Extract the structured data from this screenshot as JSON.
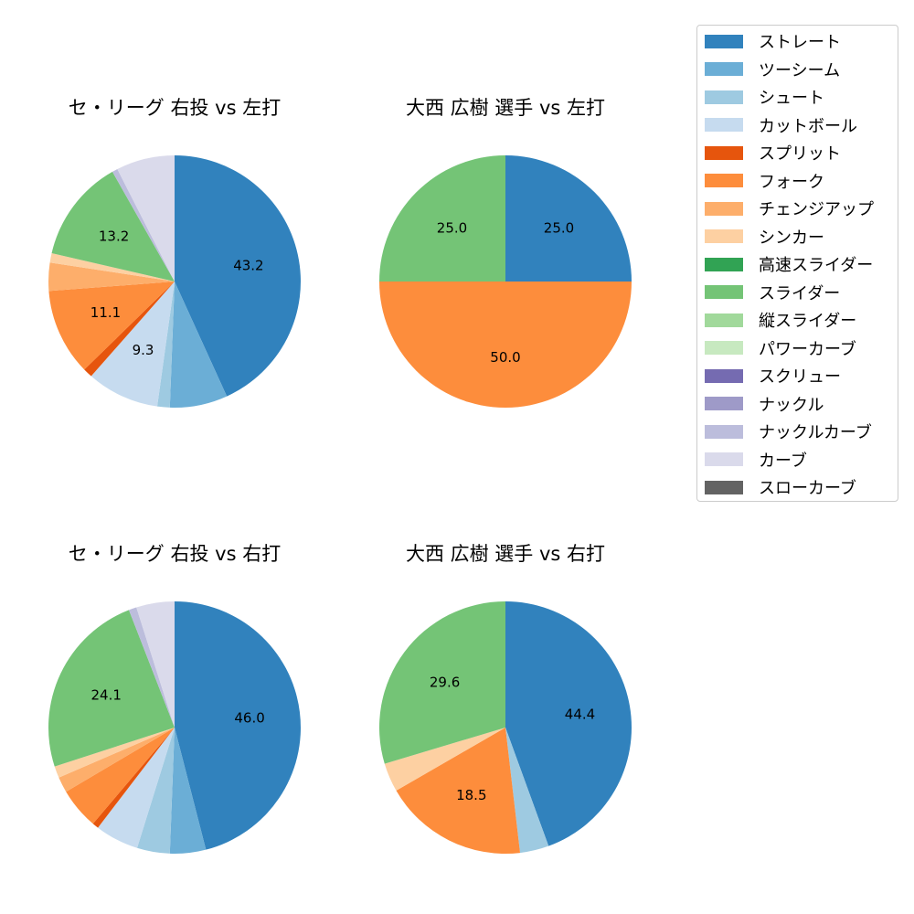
{
  "legend": [
    {
      "label": "ストレート",
      "color": "#3182bd"
    },
    {
      "label": "ツーシーム",
      "color": "#6baed6"
    },
    {
      "label": "シュート",
      "color": "#9ecae1"
    },
    {
      "label": "カットボール",
      "color": "#c6dbef"
    },
    {
      "label": "スプリット",
      "color": "#e6550d"
    },
    {
      "label": "フォーク",
      "color": "#fd8d3c"
    },
    {
      "label": "チェンジアップ",
      "color": "#fdae6b"
    },
    {
      "label": "シンカー",
      "color": "#fdd0a2"
    },
    {
      "label": "高速スライダー",
      "color": "#31a354"
    },
    {
      "label": "スライダー",
      "color": "#74c476"
    },
    {
      "label": "縦スライダー",
      "color": "#a1d99b"
    },
    {
      "label": "パワーカーブ",
      "color": "#c7e9c0"
    },
    {
      "label": "スクリュー",
      "color": "#756bb1"
    },
    {
      "label": "ナックル",
      "color": "#9e9ac8"
    },
    {
      "label": "ナックルカーブ",
      "color": "#bcbddc"
    },
    {
      "label": "カーブ",
      "color": "#dadaeb"
    },
    {
      "label": "スローカーブ",
      "color": "#636363"
    }
  ],
  "chart_data": [
    {
      "type": "pie",
      "title": "セ・リーグ 右投 vs 左打",
      "labels": [
        "ストレート",
        "ツーシーム",
        "シュート",
        "カットボール",
        "スプリット",
        "フォーク",
        "チェンジアップ",
        "シンカー",
        "スライダー",
        "ナックルカーブ",
        "カーブ"
      ],
      "values": [
        43.2,
        7.4,
        1.6,
        9.3,
        1.2,
        11.1,
        3.6,
        1.2,
        13.2,
        0.7,
        7.5
      ],
      "data_labels": [
        "43.2",
        "",
        "",
        "9.3",
        "",
        "11.1",
        "",
        "",
        "13.2",
        "",
        ""
      ]
    },
    {
      "type": "pie",
      "title": "大西 広樹 選手 vs 左打",
      "labels": [
        "ストレート",
        "フォーク",
        "スライダー"
      ],
      "values": [
        25.0,
        50.0,
        25.0
      ],
      "data_labels": [
        "25.0",
        "50.0",
        "25.0"
      ]
    },
    {
      "type": "pie",
      "title": "セ・リーグ 右投 vs 右打",
      "labels": [
        "ストレート",
        "ツーシーム",
        "シュート",
        "カットボール",
        "スプリット",
        "フォーク",
        "チェンジアップ",
        "シンカー",
        "スライダー",
        "ナックルカーブ",
        "カーブ"
      ],
      "values": [
        46.0,
        4.6,
        4.2,
        5.6,
        0.8,
        5.3,
        2.0,
        1.5,
        24.1,
        1.0,
        4.9
      ],
      "data_labels": [
        "46.0",
        "",
        "",
        "",
        "",
        "",
        "",
        "",
        "24.1",
        "",
        ""
      ]
    },
    {
      "type": "pie",
      "title": "大西 広樹 選手 vs 右打",
      "labels": [
        "ストレート",
        "シュート",
        "フォーク",
        "シンカー",
        "スライダー"
      ],
      "values": [
        44.4,
        3.7,
        18.5,
        3.7,
        29.6
      ],
      "data_labels": [
        "44.4",
        "",
        "18.5",
        "",
        "29.6"
      ]
    }
  ]
}
